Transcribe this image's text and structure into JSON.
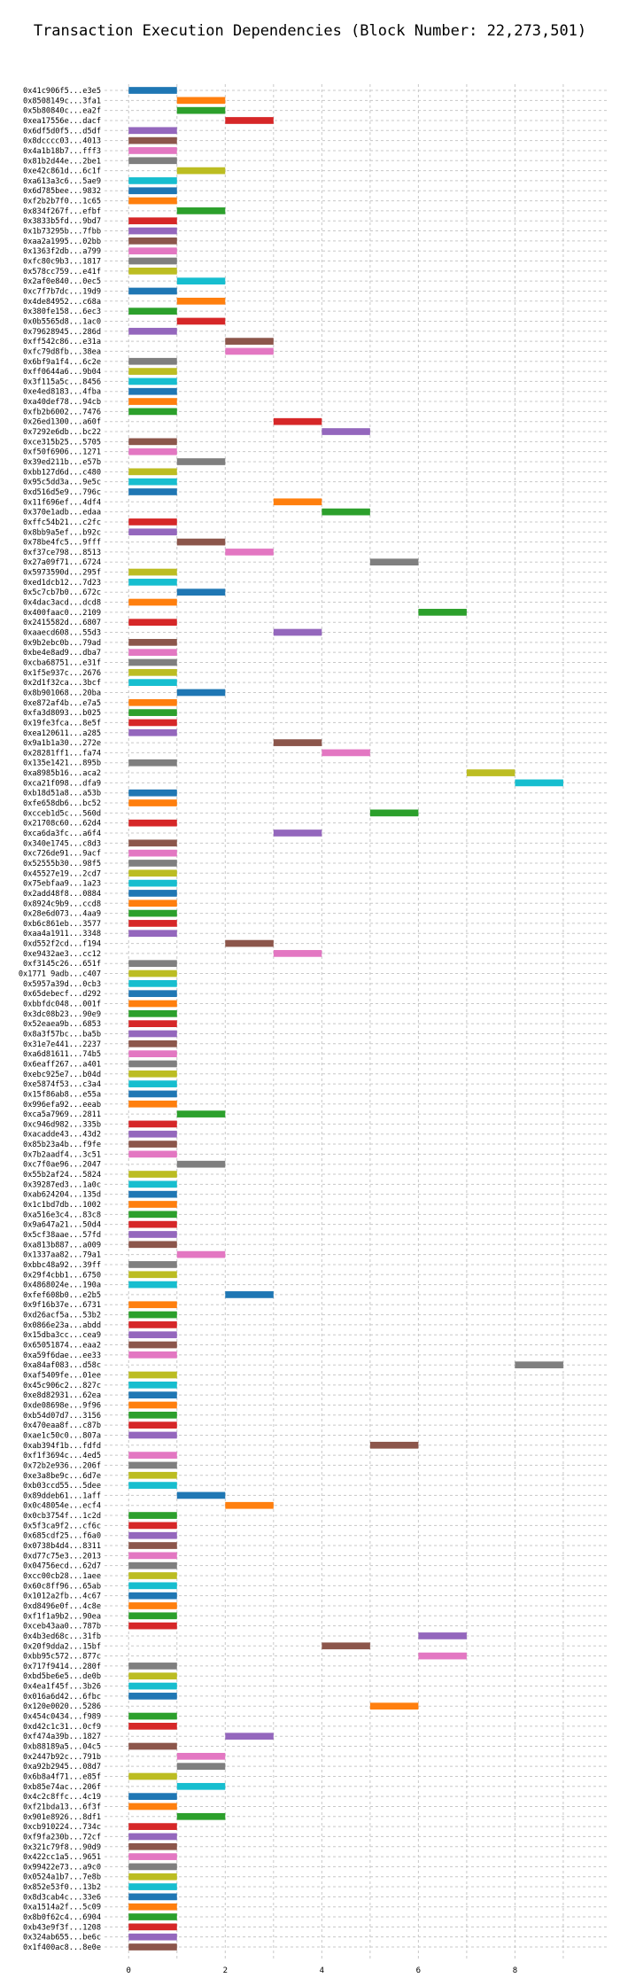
{
  "chart_data": {
    "type": "bar",
    "orientation": "horizontal",
    "title": "Transaction Execution Dependencies (Block Number: 22,273,501)",
    "xlabel": "",
    "ylabel": "",
    "xlim": [
      -0.5,
      9.9
    ],
    "x_ticks": [
      0,
      2,
      4,
      6,
      8
    ],
    "grid": true,
    "color_cycle": [
      "#1f77b4",
      "#ff7f0e",
      "#2ca02c",
      "#d62728",
      "#9467bd",
      "#8c564b",
      "#e377c2",
      "#7f7f7f",
      "#bcbd22",
      "#17becf"
    ],
    "series": [
      {
        "label": "0x41c906f5...e3e5",
        "start": 0,
        "end": 1
      },
      {
        "label": "0x8508149c...3fa1",
        "start": 1,
        "end": 2
      },
      {
        "label": "0x5b80840c...ea2f",
        "start": 1,
        "end": 2
      },
      {
        "label": "0xea17556e...dacf",
        "start": 2,
        "end": 3
      },
      {
        "label": "0x6df5d0f5...d5df",
        "start": 0,
        "end": 1
      },
      {
        "label": "0x8dcccc03...4013",
        "start": 0,
        "end": 1
      },
      {
        "label": "0x4a1b18b7...fff3",
        "start": 0,
        "end": 1
      },
      {
        "label": "0x81b2d44e...2be1",
        "start": 0,
        "end": 1
      },
      {
        "label": "0xe42c861d...6c1f",
        "start": 1,
        "end": 2
      },
      {
        "label": "0xa613a3c6...5ae9",
        "start": 0,
        "end": 1
      },
      {
        "label": "0x6d785bee...9832",
        "start": 0,
        "end": 1
      },
      {
        "label": "0xf2b2b7f0...1c65",
        "start": 0,
        "end": 1
      },
      {
        "label": "0x834f267f...efbf",
        "start": 1,
        "end": 2
      },
      {
        "label": "0x3833b5fd...9bd7",
        "start": 0,
        "end": 1
      },
      {
        "label": "0x1b73295b...7fbb",
        "start": 0,
        "end": 1
      },
      {
        "label": "0xaa2a1995...02bb",
        "start": 0,
        "end": 1
      },
      {
        "label": "0x1363f2db...a799",
        "start": 0,
        "end": 1
      },
      {
        "label": "0xfc80c9b3...1817",
        "start": 0,
        "end": 1
      },
      {
        "label": "0x578cc759...e41f",
        "start": 0,
        "end": 1
      },
      {
        "label": "0x2af0e840...0ec5",
        "start": 1,
        "end": 2
      },
      {
        "label": "0xc7f7b7dc...19d9",
        "start": 0,
        "end": 1
      },
      {
        "label": "0x4de84952...c68a",
        "start": 1,
        "end": 2
      },
      {
        "label": "0x380fe158...6ec3",
        "start": 0,
        "end": 1
      },
      {
        "label": "0x0b5565d8...1ac0",
        "start": 1,
        "end": 2
      },
      {
        "label": "0x79628945...286d",
        "start": 0,
        "end": 1
      },
      {
        "label": "0xff542c86...e31a",
        "start": 2,
        "end": 3
      },
      {
        "label": "0xfc79d8fb...38ea",
        "start": 2,
        "end": 3
      },
      {
        "label": "0x6bf9a1f4...6c2e",
        "start": 0,
        "end": 1
      },
      {
        "label": "0xff0644a6...9b04",
        "start": 0,
        "end": 1
      },
      {
        "label": "0x3f115a5c...8456",
        "start": 0,
        "end": 1
      },
      {
        "label": "0xe4ed8183...4fba",
        "start": 0,
        "end": 1
      },
      {
        "label": "0xa40def78...94cb",
        "start": 0,
        "end": 1
      },
      {
        "label": "0xfb2b6002...7476",
        "start": 0,
        "end": 1
      },
      {
        "label": "0x26ed1300...a60f",
        "start": 3,
        "end": 4
      },
      {
        "label": "0x7292e6db...bc22",
        "start": 4,
        "end": 5
      },
      {
        "label": "0xce315b25...5705",
        "start": 0,
        "end": 1
      },
      {
        "label": "0xf50f6906...1271",
        "start": 0,
        "end": 1
      },
      {
        "label": "0x39ed211b...e57b",
        "start": 1,
        "end": 2
      },
      {
        "label": "0xbb127d6d...c480",
        "start": 0,
        "end": 1
      },
      {
        "label": "0x95c5dd3a...9e5c",
        "start": 0,
        "end": 1
      },
      {
        "label": "0xd516d5e9...796c",
        "start": 0,
        "end": 1
      },
      {
        "label": "0x11f696ef...4df4",
        "start": 3,
        "end": 4
      },
      {
        "label": "0x370e1adb...edaa",
        "start": 4,
        "end": 5
      },
      {
        "label": "0xffc54b21...c2fc",
        "start": 0,
        "end": 1
      },
      {
        "label": "0x8bb9a5ef...b92c",
        "start": 0,
        "end": 1
      },
      {
        "label": "0x78be4fc5...9fff",
        "start": 1,
        "end": 2
      },
      {
        "label": "0xf37ce798...8513",
        "start": 2,
        "end": 3
      },
      {
        "label": "0x27a09f71...6724",
        "start": 5,
        "end": 6
      },
      {
        "label": "0x5973590d...295f",
        "start": 0,
        "end": 1
      },
      {
        "label": "0xed1dcb12...7d23",
        "start": 0,
        "end": 1
      },
      {
        "label": "0x5c7cb7b0...672c",
        "start": 1,
        "end": 2
      },
      {
        "label": "0x4dac3acd...dcd8",
        "start": 0,
        "end": 1
      },
      {
        "label": "0x400faac0...2109",
        "start": 6,
        "end": 7
      },
      {
        "label": "0x2415582d...6807",
        "start": 0,
        "end": 1
      },
      {
        "label": "0xaaecd608...55d3",
        "start": 3,
        "end": 4
      },
      {
        "label": "0x9b2ebc0b...79ad",
        "start": 0,
        "end": 1
      },
      {
        "label": "0xbe4e8ad9...dba7",
        "start": 0,
        "end": 1
      },
      {
        "label": "0xcba68751...e31f",
        "start": 0,
        "end": 1
      },
      {
        "label": "0x1f5e937c...2676",
        "start": 0,
        "end": 1
      },
      {
        "label": "0x2d1f32ca...3bcf",
        "start": 0,
        "end": 1
      },
      {
        "label": "0x8b901068...20ba",
        "start": 1,
        "end": 2
      },
      {
        "label": "0xe872af4b...e7a5",
        "start": 0,
        "end": 1
      },
      {
        "label": "0xfa3d8093...b025",
        "start": 0,
        "end": 1
      },
      {
        "label": "0x19fe3fca...8e5f",
        "start": 0,
        "end": 1
      },
      {
        "label": "0xea120611...a285",
        "start": 0,
        "end": 1
      },
      {
        "label": "0x9a1b1a30...272e",
        "start": 3,
        "end": 4
      },
      {
        "label": "0x28281ff1...fa74",
        "start": 4,
        "end": 5
      },
      {
        "label": "0x135e1421...895b",
        "start": 0,
        "end": 1
      },
      {
        "label": "0xa8985b16...aca2",
        "start": 7,
        "end": 8
      },
      {
        "label": "0xca21f098...dfa9",
        "start": 8,
        "end": 9
      },
      {
        "label": "0xb18d51a8...a53b",
        "start": 0,
        "end": 1
      },
      {
        "label": "0xfe658db6...bc52",
        "start": 0,
        "end": 1
      },
      {
        "label": "0xcceb1d5c...560d",
        "start": 5,
        "end": 6
      },
      {
        "label": "0x21708c60...62d4",
        "start": 0,
        "end": 1
      },
      {
        "label": "0xca6da3fc...a6f4",
        "start": 3,
        "end": 4
      },
      {
        "label": "0x340e1745...c8d3",
        "start": 0,
        "end": 1
      },
      {
        "label": "0xc726de91...9acf",
        "start": 0,
        "end": 1
      },
      {
        "label": "0x52555b30...98f5",
        "start": 0,
        "end": 1
      },
      {
        "label": "0x45527e19...2cd7",
        "start": 0,
        "end": 1
      },
      {
        "label": "0x75ebfaa9...1a23",
        "start": 0,
        "end": 1
      },
      {
        "label": "0x2add48f8...0884",
        "start": 0,
        "end": 1
      },
      {
        "label": "0x8924c9b9...ccd8",
        "start": 0,
        "end": 1
      },
      {
        "label": "0x28e6d073...4aa9",
        "start": 0,
        "end": 1
      },
      {
        "label": "0xb6c861eb...3577",
        "start": 0,
        "end": 1
      },
      {
        "label": "0xaa4a1911...3348",
        "start": 0,
        "end": 1
      },
      {
        "label": "0xd552f2cd...f194",
        "start": 2,
        "end": 3
      },
      {
        "label": "0xe9432ae3...cc12",
        "start": 3,
        "end": 4
      },
      {
        "label": "0xf3145c26...651f",
        "start": 0,
        "end": 1
      },
      {
        "label": "0x1771 9adb...c407",
        "start": 0,
        "end": 1
      },
      {
        "label": "0x5957a39d...0cb3",
        "start": 0,
        "end": 1
      },
      {
        "label": "0x65debecf...d292",
        "start": 0,
        "end": 1
      },
      {
        "label": "0xbbfdc048...001f",
        "start": 0,
        "end": 1
      },
      {
        "label": "0x3dc08b23...90e9",
        "start": 0,
        "end": 1
      },
      {
        "label": "0x52eaea9b...6853",
        "start": 0,
        "end": 1
      },
      {
        "label": "0x8a3f57bc...ba5b",
        "start": 0,
        "end": 1
      },
      {
        "label": "0x31e7e441...2237",
        "start": 0,
        "end": 1
      },
      {
        "label": "0xa6d81611...74b5",
        "start": 0,
        "end": 1
      },
      {
        "label": "0x6eaff267...a401",
        "start": 0,
        "end": 1
      },
      {
        "label": "0xebc925e7...b04d",
        "start": 0,
        "end": 1
      },
      {
        "label": "0xe5874f53...c3a4",
        "start": 0,
        "end": 1
      },
      {
        "label": "0x15f86ab8...e55a",
        "start": 0,
        "end": 1
      },
      {
        "label": "0x996efa92...eeab",
        "start": 0,
        "end": 1
      },
      {
        "label": "0xca5a7969...2811",
        "start": 1,
        "end": 2
      },
      {
        "label": "0xc946d982...335b",
        "start": 0,
        "end": 1
      },
      {
        "label": "0xacadde43...43d2",
        "start": 0,
        "end": 1
      },
      {
        "label": "0x85b23a4b...f9fe",
        "start": 0,
        "end": 1
      },
      {
        "label": "0x7b2aadf4...3c51",
        "start": 0,
        "end": 1
      },
      {
        "label": "0xc7f0ae96...2047",
        "start": 1,
        "end": 2
      },
      {
        "label": "0x55b2af24...5824",
        "start": 0,
        "end": 1
      },
      {
        "label": "0x39287ed3...1a0c",
        "start": 0,
        "end": 1
      },
      {
        "label": "0xab624204...135d",
        "start": 0,
        "end": 1
      },
      {
        "label": "0x1c1bd7db...1002",
        "start": 0,
        "end": 1
      },
      {
        "label": "0xa516e3c4...83c8",
        "start": 0,
        "end": 1
      },
      {
        "label": "0x9a647a21...50d4",
        "start": 0,
        "end": 1
      },
      {
        "label": "0x5cf38aae...57fd",
        "start": 0,
        "end": 1
      },
      {
        "label": "0xa813b887...a009",
        "start": 0,
        "end": 1
      },
      {
        "label": "0x1337aa82...79a1",
        "start": 1,
        "end": 2
      },
      {
        "label": "0xbbc48a92...39ff",
        "start": 0,
        "end": 1
      },
      {
        "label": "0x29f4cbb1...6750",
        "start": 0,
        "end": 1
      },
      {
        "label": "0x4868024e...190a",
        "start": 0,
        "end": 1
      },
      {
        "label": "0xfef608b0...e2b5",
        "start": 2,
        "end": 3
      },
      {
        "label": "0x9f16b37e...6731",
        "start": 0,
        "end": 1
      },
      {
        "label": "0xd26acf5a...53b2",
        "start": 0,
        "end": 1
      },
      {
        "label": "0x0866e23a...abdd",
        "start": 0,
        "end": 1
      },
      {
        "label": "0x15dba3cc...cea9",
        "start": 0,
        "end": 1
      },
      {
        "label": "0x65051874...eaa2",
        "start": 0,
        "end": 1
      },
      {
        "label": "0xa59f6dae...ee33",
        "start": 0,
        "end": 1
      },
      {
        "label": "0xa84af083...d58c",
        "start": 8,
        "end": 9
      },
      {
        "label": "0xaf5409fe...01ee",
        "start": 0,
        "end": 1
      },
      {
        "label": "0x45c906c2...827c",
        "start": 0,
        "end": 1
      },
      {
        "label": "0xe8d82931...62ea",
        "start": 0,
        "end": 1
      },
      {
        "label": "0xde08698e...9f96",
        "start": 0,
        "end": 1
      },
      {
        "label": "0xb54d07d7...3156",
        "start": 0,
        "end": 1
      },
      {
        "label": "0x470eaa8f...c87b",
        "start": 0,
        "end": 1
      },
      {
        "label": "0xae1c50c0...807a",
        "start": 0,
        "end": 1
      },
      {
        "label": "0xab394f1b...fdfd",
        "start": 5,
        "end": 6
      },
      {
        "label": "0xf1f3694c...4ed5",
        "start": 0,
        "end": 1
      },
      {
        "label": "0x72b2e936...206f",
        "start": 0,
        "end": 1
      },
      {
        "label": "0xe3a8be9c...6d7e",
        "start": 0,
        "end": 1
      },
      {
        "label": "0xb03ccd55...5dee",
        "start": 0,
        "end": 1
      },
      {
        "label": "0x89ddeb61...1aff",
        "start": 1,
        "end": 2
      },
      {
        "label": "0x0c48054e...ecf4",
        "start": 2,
        "end": 3
      },
      {
        "label": "0x0cb3754f...1c2d",
        "start": 0,
        "end": 1
      },
      {
        "label": "0x5f3ca9f2...cf6c",
        "start": 0,
        "end": 1
      },
      {
        "label": "0x685cdf25...f6a0",
        "start": 0,
        "end": 1
      },
      {
        "label": "0x0738b4d4...8311",
        "start": 0,
        "end": 1
      },
      {
        "label": "0xd77c75e3...2013",
        "start": 0,
        "end": 1
      },
      {
        "label": "0x04756ecd...62d7",
        "start": 0,
        "end": 1
      },
      {
        "label": "0xcc00cb28...1aee",
        "start": 0,
        "end": 1
      },
      {
        "label": "0x60c8ff96...65ab",
        "start": 0,
        "end": 1
      },
      {
        "label": "0x1012a2fb...4c67",
        "start": 0,
        "end": 1
      },
      {
        "label": "0xd8496e0f...4c8e",
        "start": 0,
        "end": 1
      },
      {
        "label": "0xf1f1a9b2...90ea",
        "start": 0,
        "end": 1
      },
      {
        "label": "0xceb43aa0...787b",
        "start": 0,
        "end": 1
      },
      {
        "label": "0x4b3ed68c...31fb",
        "start": 6,
        "end": 7
      },
      {
        "label": "0x20f9dda2...15bf",
        "start": 4,
        "end": 5
      },
      {
        "label": "0xbb95c572...877c",
        "start": 6,
        "end": 7
      },
      {
        "label": "0x717f9414...280f",
        "start": 0,
        "end": 1
      },
      {
        "label": "0xbd5be6e5...de0b",
        "start": 0,
        "end": 1
      },
      {
        "label": "0x4ea1f45f...3b26",
        "start": 0,
        "end": 1
      },
      {
        "label": "0x016a6d42...6fbc",
        "start": 0,
        "end": 1
      },
      {
        "label": "0x120e0020...5286",
        "start": 5,
        "end": 6
      },
      {
        "label": "0x454c0434...f989",
        "start": 0,
        "end": 1
      },
      {
        "label": "0xd42c1c31...0cf9",
        "start": 0,
        "end": 1
      },
      {
        "label": "0xf474a39b...1827",
        "start": 2,
        "end": 3
      },
      {
        "label": "0xb88189a5...04c5",
        "start": 0,
        "end": 1
      },
      {
        "label": "0x2447b92c...791b",
        "start": 1,
        "end": 2
      },
      {
        "label": "0xa92b2945...08d7",
        "start": 1,
        "end": 2
      },
      {
        "label": "0x6b8a4f71...e85f",
        "start": 0,
        "end": 1
      },
      {
        "label": "0xb85e74ac...206f",
        "start": 1,
        "end": 2
      },
      {
        "label": "0x4c2c8ffc...4c19",
        "start": 0,
        "end": 1
      },
      {
        "label": "0xf21bda13...6f3f",
        "start": 0,
        "end": 1
      },
      {
        "label": "0x901e8926...8df1",
        "start": 1,
        "end": 2
      },
      {
        "label": "0xcb910224...734c",
        "start": 0,
        "end": 1
      },
      {
        "label": "0xf9fa230b...72cf",
        "start": 0,
        "end": 1
      },
      {
        "label": "0x321c79f8...90d9",
        "start": 0,
        "end": 1
      },
      {
        "label": "0x422cc1a5...9651",
        "start": 0,
        "end": 1
      },
      {
        "label": "0x99422e73...a9c0",
        "start": 0,
        "end": 1
      },
      {
        "label": "0x0524a1b7...7e8b",
        "start": 0,
        "end": 1
      },
      {
        "label": "0x852e53f0...13b2",
        "start": 0,
        "end": 1
      },
      {
        "label": "0x8d3cab4c...33e6",
        "start": 0,
        "end": 1
      },
      {
        "label": "0xa1514a2f...5c09",
        "start": 0,
        "end": 1
      },
      {
        "label": "0x8b0f62c4...6904",
        "start": 0,
        "end": 1
      },
      {
        "label": "0xb43e9f3f...1208",
        "start": 0,
        "end": 1
      },
      {
        "label": "0x324ab655...be6c",
        "start": 0,
        "end": 1
      },
      {
        "label": "0x1f400ac8...8e0e",
        "start": 0,
        "end": 1
      }
    ]
  }
}
